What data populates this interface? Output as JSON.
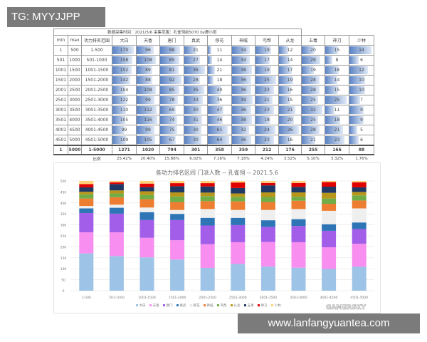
{
  "watermark_top": "TG: MYYJJPP",
  "watermark_bottom": "www.lanfangyuantea.com",
  "table": {
    "title": "数据采集时间：2021/5/6  采集范围：孔雀翎前5070  by鹿小雨",
    "headers": [
      "min",
      "max",
      "功力排名范围",
      "大白",
      "天香",
      "唐门",
      "真武",
      "移花",
      "神威",
      "丐帮",
      "从龙",
      "五毒",
      "神刀",
      "少林"
    ],
    "rows": [
      [
        "1",
        "500",
        "1-500",
        170,
        96,
        88,
        21,
        11,
        34,
        19,
        12,
        20,
        15,
        14
      ],
      [
        "501",
        "1000",
        "501-1000",
        158,
        108,
        85,
        27,
        14,
        34,
        17,
        14,
        29,
        8,
        6
      ],
      [
        "1001",
        "1500",
        "1001-1500",
        152,
        89,
        81,
        36,
        21,
        38,
        19,
        17,
        19,
        16,
        12
      ],
      [
        "1501",
        "2000",
        "1501-2000",
        142,
        88,
        92,
        28,
        18,
        36,
        25,
        19,
        28,
        14,
        10
      ],
      [
        "2001",
        "2500",
        "2001-2500",
        104,
        108,
        85,
        35,
        40,
        36,
        23,
        16,
        28,
        15,
        10
      ],
      [
        "2501",
        "3000",
        "2501-3000",
        122,
        99,
        78,
        33,
        36,
        39,
        21,
        15,
        25,
        25,
        7
      ],
      [
        "3001",
        "3500",
        "3001-3500",
        110,
        112,
        69,
        30,
        47,
        36,
        23,
        21,
        32,
        11,
        9
      ],
      [
        "3501",
        "4000",
        "3501-4000",
        105,
        116,
        74,
        31,
        46,
        38,
        18,
        20,
        25,
        18,
        9
      ],
      [
        "4001",
        "4500",
        "4001-4500",
        99,
        99,
        75,
        30,
        61,
        32,
        24,
        26,
        28,
        21,
        5
      ],
      [
        "4501",
        "5000",
        "4501-5000",
        109,
        105,
        67,
        30,
        64,
        36,
        23,
        16,
        21,
        23,
        6
      ]
    ],
    "total": [
      "1",
      "5000",
      "1-5000",
      1271,
      1020,
      794,
      301,
      358,
      359,
      212,
      176,
      255,
      166,
      88
    ],
    "ratio_label": "比例",
    "ratios": [
      "25.42%",
      "20.40%",
      "15.88%",
      "6.02%",
      "7.16%",
      "7.18%",
      "4.24%",
      "3.52%",
      "5.10%",
      "3.32%",
      "1.76%"
    ]
  },
  "chart_data": {
    "type": "bar",
    "stacked": true,
    "title": "各功力排名区间 门派人数 -- 孔雀翎 -- 2021.5.6",
    "categories": [
      "1-500",
      "501-1000",
      "1001-1500",
      "1501-2000",
      "2001-2500",
      "2501-3000",
      "3001-3500",
      "3501-4000",
      "4001-4500",
      "4501-5000"
    ],
    "ylim": [
      0,
      500
    ],
    "yticks": [
      0,
      50,
      100,
      150,
      200,
      250,
      300,
      350,
      400,
      450,
      500
    ],
    "grid": true,
    "legend": "bottom",
    "series": [
      {
        "name": "大白",
        "color": "#9dc3e6",
        "values": [
          170,
          158,
          152,
          142,
          104,
          122,
          110,
          105,
          99,
          109
        ]
      },
      {
        "name": "天香",
        "color": "#f78ef0",
        "values": [
          96,
          108,
          89,
          88,
          108,
          99,
          112,
          116,
          99,
          105
        ]
      },
      {
        "name": "唐门",
        "color": "#a25ee8",
        "values": [
          88,
          85,
          81,
          92,
          85,
          78,
          69,
          74,
          75,
          67
        ]
      },
      {
        "name": "真武",
        "color": "#2e75b6",
        "values": [
          21,
          27,
          36,
          28,
          35,
          33,
          30,
          31,
          30,
          30
        ]
      },
      {
        "name": "移花",
        "color": "#efefef",
        "values": [
          11,
          14,
          21,
          18,
          40,
          36,
          47,
          46,
          61,
          64
        ]
      },
      {
        "name": "神威",
        "color": "#ed7d31",
        "values": [
          34,
          34,
          38,
          36,
          36,
          39,
          36,
          38,
          32,
          36
        ]
      },
      {
        "name": "丐帮",
        "color": "#70ad47",
        "values": [
          19,
          17,
          19,
          25,
          23,
          21,
          23,
          18,
          24,
          23
        ]
      },
      {
        "name": "从龙",
        "color": "#b8961c",
        "values": [
          12,
          14,
          17,
          19,
          16,
          15,
          21,
          20,
          26,
          16
        ]
      },
      {
        "name": "五毒",
        "color": "#203864",
        "values": [
          20,
          29,
          19,
          28,
          28,
          25,
          32,
          25,
          28,
          21
        ]
      },
      {
        "name": "神刀",
        "color": "#e00000",
        "values": [
          15,
          8,
          16,
          14,
          15,
          25,
          11,
          18,
          21,
          23
        ]
      },
      {
        "name": "少林",
        "color": "#ffd27a",
        "values": [
          14,
          6,
          12,
          10,
          10,
          7,
          9,
          9,
          5,
          6
        ]
      }
    ],
    "watermark": "GAMERSKY"
  }
}
